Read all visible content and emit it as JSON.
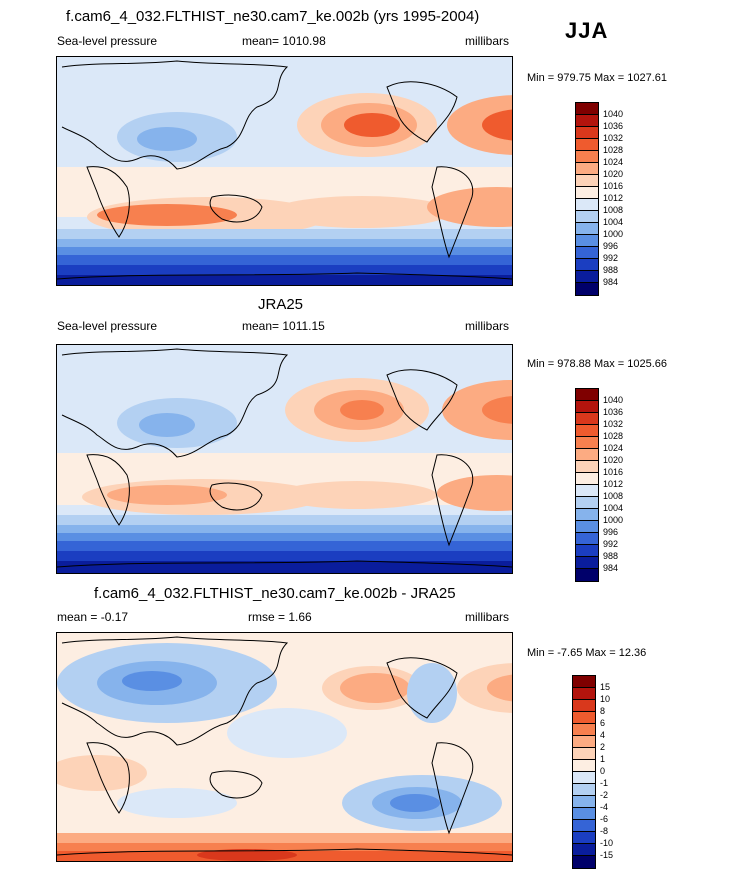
{
  "season": "JJA",
  "panels": [
    {
      "title": "f.cam6_4_032.FLTHIST_ne30.cam7_ke.002b (yrs 1995-2004)",
      "left_label": "Sea-level pressure",
      "center_label": "mean= 1010.98",
      "right_label": "millibars",
      "minmax": "Min = 979.75 Max = 1027.61",
      "colorbar": {
        "labels": [
          "1040",
          "1036",
          "1032",
          "1028",
          "1024",
          "1020",
          "1016",
          "1012",
          "1008",
          "1004",
          "1000",
          "996",
          "992",
          "988",
          "984"
        ],
        "colors": [
          "#7f0000",
          "#b3140d",
          "#d9381c",
          "#ef5b2e",
          "#f7804f",
          "#fcab82",
          "#fdd3b8",
          "#fdeee2",
          "#dbe8f8",
          "#b3d0f2",
          "#86b3ec",
          "#5a8fe3",
          "#3564d6",
          "#1b3ec1",
          "#0a1d9c",
          "#00006a"
        ]
      }
    },
    {
      "title": "JRA25",
      "left_label": "Sea-level pressure",
      "center_label": "mean= 1011.15",
      "right_label": "millibars",
      "minmax": "Min = 978.88 Max = 1025.66",
      "colorbar": {
        "labels": [
          "1040",
          "1036",
          "1032",
          "1028",
          "1024",
          "1020",
          "1016",
          "1012",
          "1008",
          "1004",
          "1000",
          "996",
          "992",
          "988",
          "984"
        ],
        "colors": [
          "#7f0000",
          "#b3140d",
          "#d9381c",
          "#ef5b2e",
          "#f7804f",
          "#fcab82",
          "#fdd3b8",
          "#fdeee2",
          "#dbe8f8",
          "#b3d0f2",
          "#86b3ec",
          "#5a8fe3",
          "#3564d6",
          "#1b3ec1",
          "#0a1d9c",
          "#00006a"
        ]
      }
    },
    {
      "title": "f.cam6_4_032.FLTHIST_ne30.cam7_ke.002b - JRA25",
      "left_label": "mean =  -0.17",
      "center_label": "rmse =   1.66",
      "right_label": "millibars",
      "minmax": "Min =  -7.65 Max =  12.36",
      "colorbar": {
        "labels": [
          "15",
          "10",
          "8",
          "6",
          "4",
          "2",
          "1",
          "0",
          "-1",
          "-2",
          "-4",
          "-6",
          "-8",
          "-10",
          "-15"
        ],
        "colors": [
          "#7f0000",
          "#b3140d",
          "#d9381c",
          "#ef5b2e",
          "#f7804f",
          "#fcab82",
          "#fdd3b8",
          "#fdeee2",
          "#dbe8f8",
          "#b3d0f2",
          "#86b3ec",
          "#5a8fe3",
          "#3564d6",
          "#1b3ec1",
          "#0a1d9c",
          "#00006a"
        ]
      }
    }
  ],
  "chart_data": [
    {
      "type": "heatmap",
      "title": "f.cam6_4_032.FLTHIST_ne30.cam7_ke.002b (yrs 1995-2004)",
      "variable": "Sea-level pressure",
      "units": "millibars",
      "mean": 1010.98,
      "min": 979.75,
      "max": 1027.61,
      "contour_levels": [
        984,
        988,
        992,
        996,
        1000,
        1004,
        1008,
        1012,
        1016,
        1020,
        1024,
        1028,
        1032,
        1036,
        1040
      ]
    },
    {
      "type": "heatmap",
      "title": "JRA25",
      "variable": "Sea-level pressure",
      "units": "millibars",
      "mean": 1011.15,
      "min": 978.88,
      "max": 1025.66,
      "contour_levels": [
        984,
        988,
        992,
        996,
        1000,
        1004,
        1008,
        1012,
        1016,
        1020,
        1024,
        1028,
        1032,
        1036,
        1040
      ]
    },
    {
      "type": "heatmap",
      "title": "f.cam6_4_032.FLTHIST_ne30.cam7_ke.002b - JRA25",
      "units": "millibars",
      "mean": -0.17,
      "rmse": 1.66,
      "min": -7.65,
      "max": 12.36,
      "contour_levels": [
        -15,
        -10,
        -8,
        -6,
        -4,
        -2,
        -1,
        0,
        1,
        2,
        4,
        6,
        8,
        10,
        15
      ]
    }
  ]
}
